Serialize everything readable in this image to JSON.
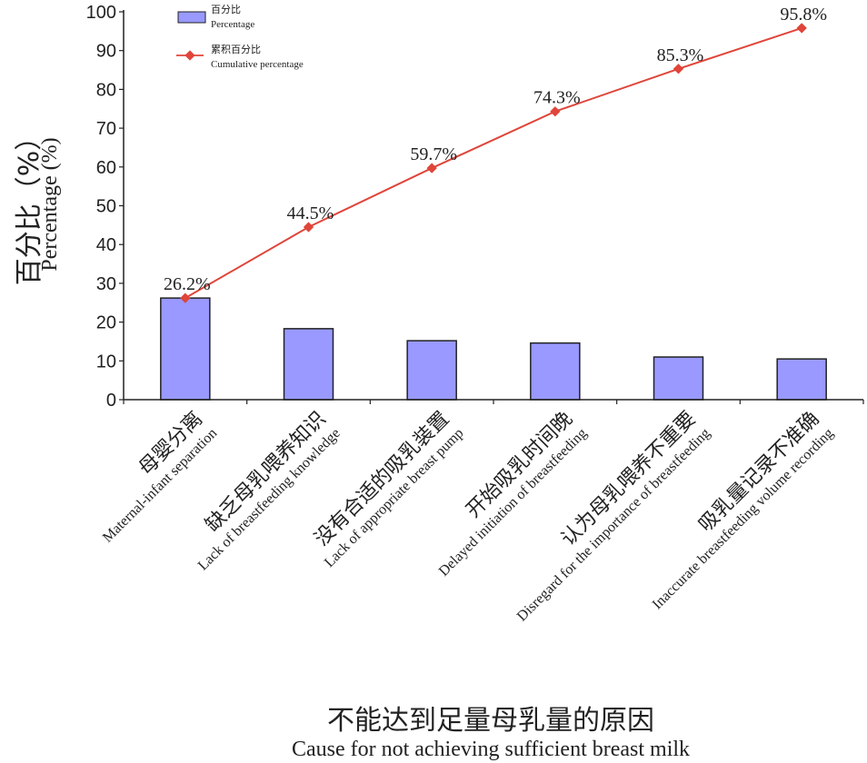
{
  "chart_data": {
    "type": "bar",
    "ylim": [
      0,
      100
    ],
    "yticks": [
      0,
      10,
      20,
      30,
      40,
      50,
      60,
      70,
      80,
      90,
      100
    ],
    "ylabel_cn": "百分比（%）",
    "ylabel_en": "Percentage (%)",
    "xlabel_cn": "不能达到足量母乳量的原因",
    "xlabel_en": "Cause for not achieving sufficient breast milk",
    "legend": {
      "position": "top-left",
      "bar_cn": "百分比",
      "bar_en": "Percentage",
      "line_cn": "累积百分比",
      "line_en": "Cumulative percentage"
    },
    "categories": [
      {
        "cn": "母婴分离",
        "en": "Maternal-infant separation"
      },
      {
        "cn": "缺乏母乳喂养知识",
        "en": "Lack of breastfeeding knowledge"
      },
      {
        "cn": "没有合适的吸乳装置",
        "en": "Lack of appropriate breast pump"
      },
      {
        "cn": "开始吸乳时间晚",
        "en": "Delayed initiation of breastfeeding"
      },
      {
        "cn": "认为母乳喂养不重要",
        "en": "Disregard for the importance of breastfeeding"
      },
      {
        "cn": "吸乳量记录不准确",
        "en": "Inaccurate breastfeeding volume recording"
      }
    ],
    "series": [
      {
        "name": "Percentage",
        "type": "bar",
        "color": "#9999ff",
        "values": [
          26.2,
          18.3,
          15.2,
          14.6,
          11.0,
          10.5
        ]
      },
      {
        "name": "Cumulative percentage",
        "type": "line",
        "color": "#e0453a",
        "values": [
          26.2,
          44.5,
          59.7,
          74.3,
          85.3,
          95.8
        ],
        "labels": [
          "26.2%",
          "44.5%",
          "59.7%",
          "74.3%",
          "85.3%",
          "95.8%"
        ]
      }
    ]
  }
}
